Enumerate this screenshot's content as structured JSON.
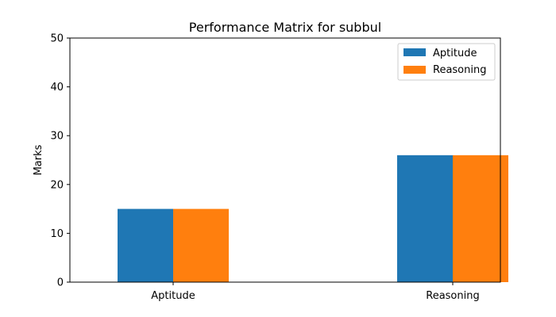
{
  "chart_data": {
    "type": "bar",
    "title": "Performance Matrix for subbul",
    "xlabel": "",
    "ylabel": "Marks",
    "categories": [
      "Aptitude",
      "Reasoning"
    ],
    "series": [
      {
        "name": "Aptitude",
        "values": [
          15,
          26
        ],
        "color": "#1f77b4"
      },
      {
        "name": "Reasoning",
        "values": [
          15,
          26
        ],
        "color": "#ff7f0e"
      }
    ],
    "ylim": [
      0,
      50
    ],
    "yticks": [
      0,
      10,
      20,
      30,
      40,
      50
    ],
    "grid": false,
    "legend_position": "top-right"
  }
}
